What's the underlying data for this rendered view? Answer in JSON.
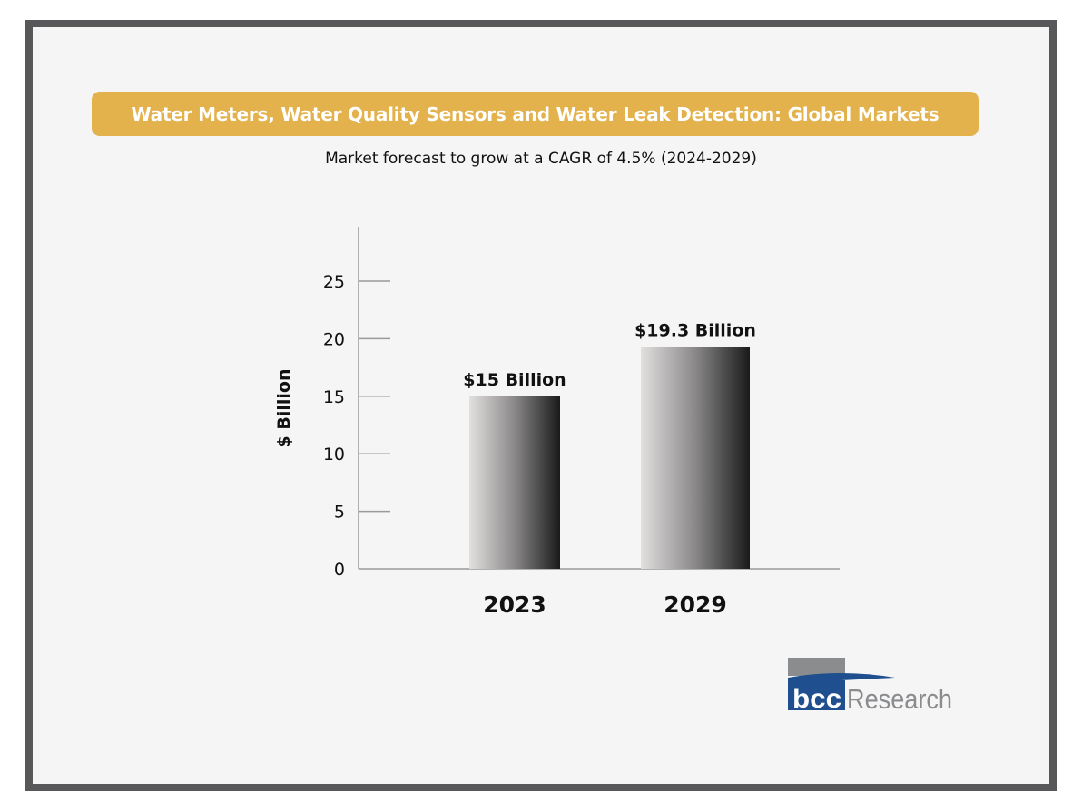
{
  "chart_data": {
    "type": "bar",
    "title": "Water Meters, Water Quality Sensors and Water Leak Detection: Global Markets",
    "subtitle": "Market forecast to grow at a CAGR of 4.5% (2024-2029)",
    "categories": [
      "2023",
      "2029"
    ],
    "values": [
      15,
      19.3
    ],
    "data_labels": [
      "$15 Billion",
      "$19.3 Billion"
    ],
    "xlabel": "",
    "ylabel": "$ Billion",
    "ylim": [
      0,
      29
    ],
    "yticks": [
      0,
      5,
      10,
      15,
      20,
      25
    ],
    "grid": false,
    "bar_style": "horizontal gradient light gray to black"
  },
  "colors": {
    "banner": "#e3b24c",
    "frame": "#58585a",
    "background": "#f5f5f5",
    "logo_blue": "#1f4f8f",
    "logo_gray": "#8a8c8e"
  },
  "logo": {
    "text_bold": "bcc",
    "text": "Research"
  }
}
